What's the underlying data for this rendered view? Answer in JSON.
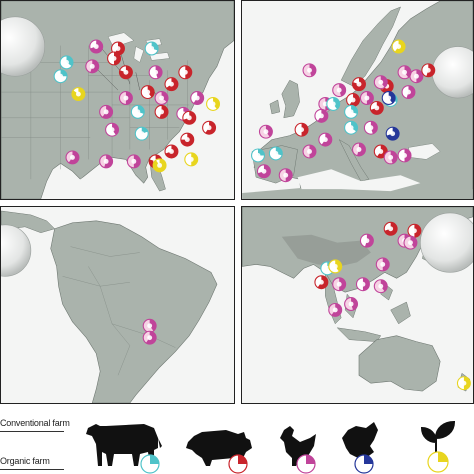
{
  "legend": {
    "conventional_label": "Conventional farm",
    "organic_label": "Organic farm",
    "items": [
      {
        "icon": "cow-icon",
        "color": "#4fc3c9"
      },
      {
        "icon": "pig-icon",
        "color": "#c8242b"
      },
      {
        "icon": "chicken-icon",
        "color": "#c0449a"
      },
      {
        "icon": "turkey-icon",
        "color": "#25379a"
      },
      {
        "icon": "plant-icon",
        "color": "#e8d51e"
      }
    ]
  },
  "colors": {
    "cattle": "#4fc3c9",
    "swine": "#c8242b",
    "poultry": "#c0449a",
    "turkey": "#25379a",
    "plant": "#e8d51e",
    "organic_tint": "#f6d2e4",
    "land": "#aab3ac",
    "water": "#f4f5f4"
  },
  "panels": [
    {
      "region": "north-america"
    },
    {
      "region": "europe"
    },
    {
      "region": "south-america"
    },
    {
      "region": "asia-oceania"
    }
  ]
}
